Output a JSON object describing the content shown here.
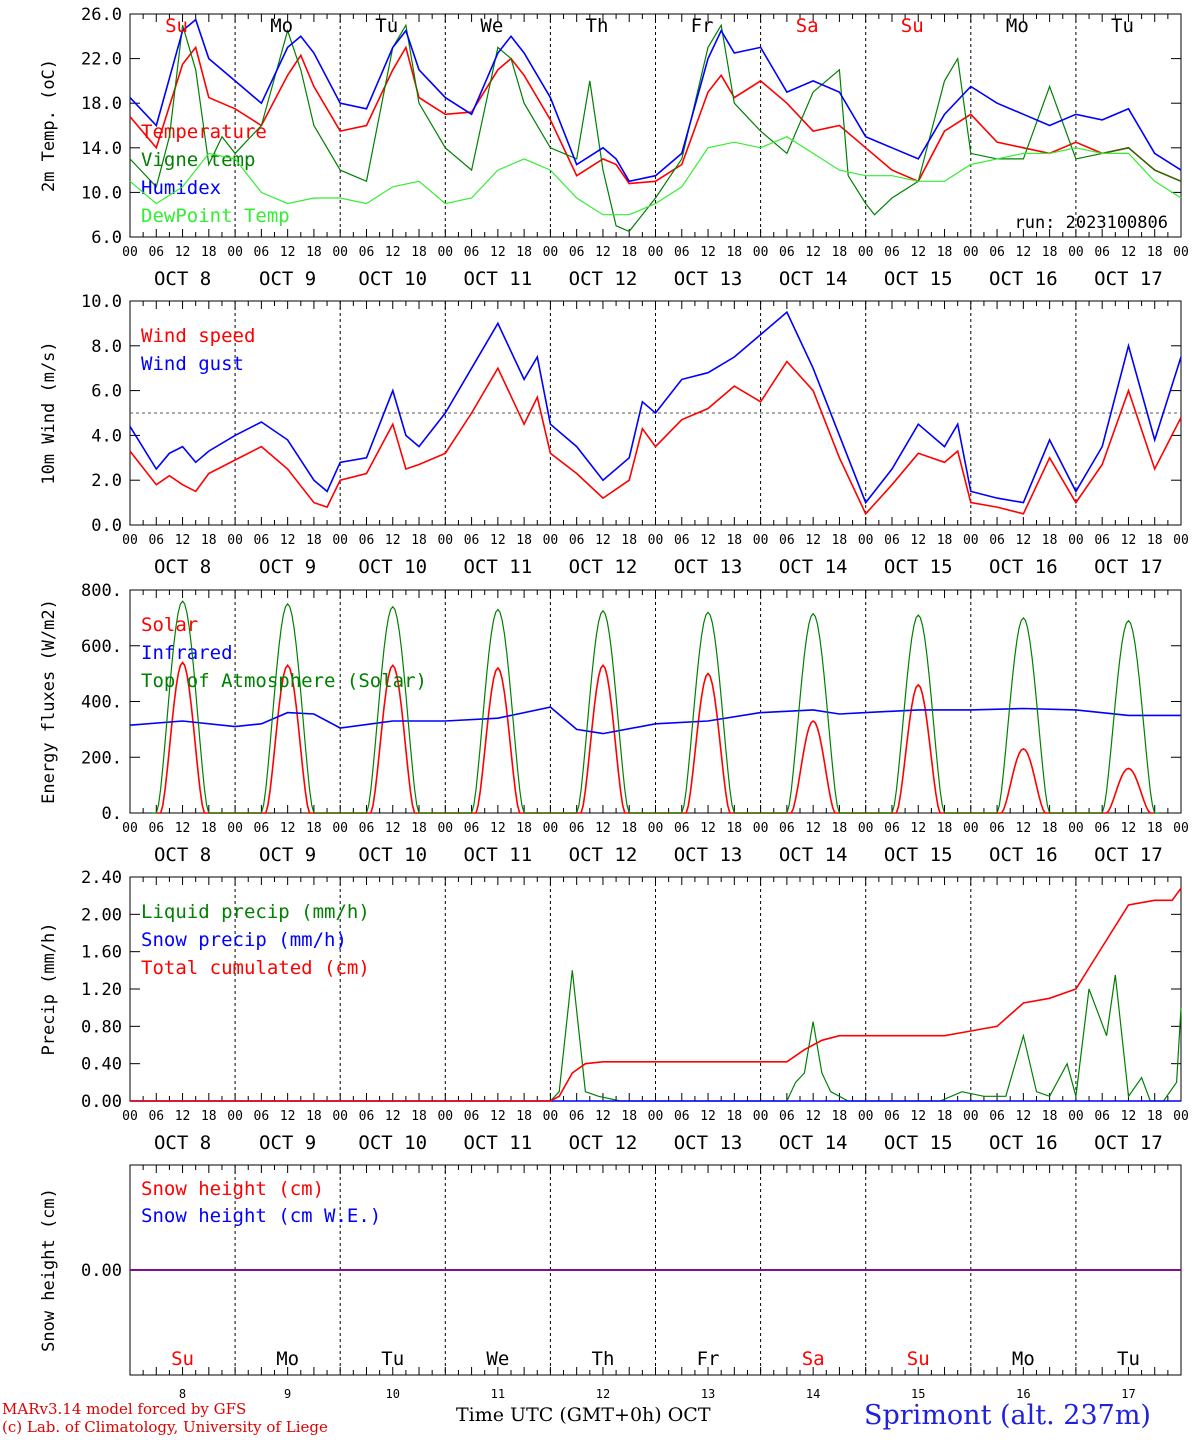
{
  "run": "run: 2023100806",
  "model_credit": "MARv3.14 model forced by GFS",
  "lab_credit": "(c) Lab. of Climatology, University of Liege",
  "time_axis_label": "Time UTC (GMT+0h) OCT",
  "station": "Sprimont (alt. 237m)",
  "colors": {
    "red": "#ff0000",
    "green": "#008000",
    "blue": "#0000ff",
    "lightgreen": "#33ee33",
    "purple": "#800080"
  },
  "days": {
    "labels": [
      "Su",
      "Mo",
      "Tu",
      "We",
      "Th",
      "Fr",
      "Sa",
      "Su",
      "Mo",
      "Tu"
    ],
    "weekend": [
      true,
      false,
      false,
      false,
      false,
      false,
      true,
      true,
      false,
      false
    ],
    "dates": [
      "OCT  8",
      "OCT  9",
      "OCT 10",
      "OCT 11",
      "OCT 12",
      "OCT 13",
      "OCT 14",
      "OCT 15",
      "OCT 16",
      "OCT 17"
    ],
    "numbers": [
      "8",
      "9",
      "10",
      "11",
      "12",
      "13",
      "14",
      "15",
      "16",
      "17"
    ],
    "hour_ticks": [
      "00",
      "06",
      "12",
      "18"
    ],
    "final_tick": "00"
  },
  "chart_data": [
    {
      "type": "line",
      "ylabel": "2m Temp. (oC)",
      "ytick_labels": [
        "6.0",
        "10.0",
        "14.0",
        "18.0",
        "22.0",
        "26.0"
      ],
      "ylim": [
        6,
        26
      ],
      "x_unit": "hours from 2023-10-08 00 UTC",
      "series": [
        {
          "name": "Temperature",
          "color": "red",
          "x": [
            0,
            6,
            12,
            15,
            18,
            24,
            30,
            36,
            39,
            42,
            48,
            54,
            60,
            63,
            66,
            72,
            78,
            84,
            87,
            90,
            96,
            102,
            108,
            111,
            114,
            120,
            126,
            132,
            135,
            138,
            144,
            150,
            156,
            162,
            168,
            174,
            180,
            186,
            192,
            198,
            204,
            210,
            216,
            222,
            228,
            234,
            240
          ],
          "y": [
            16.8,
            14,
            21.5,
            23,
            18.5,
            17.5,
            16,
            20.5,
            22.3,
            19.5,
            15.5,
            16,
            21,
            23,
            18.5,
            17,
            17.2,
            21,
            22,
            20.5,
            16.5,
            11.5,
            13,
            12.5,
            10.8,
            11,
            12.5,
            19,
            20.5,
            18.5,
            20,
            18,
            15.5,
            16,
            14,
            12,
            11,
            15.5,
            17,
            14.5,
            14,
            13.5,
            14.5,
            13.5,
            14,
            12,
            11
          ]
        },
        {
          "name": "Vigne temp",
          "color": "green",
          "x": [
            0,
            6,
            9,
            12,
            15,
            18,
            21,
            24,
            30,
            36,
            39,
            42,
            48,
            54,
            60,
            63,
            66,
            72,
            78,
            84,
            87,
            90,
            96,
            102,
            105,
            108,
            111,
            114,
            120,
            126,
            132,
            135,
            138,
            144,
            150,
            156,
            162,
            164,
            168,
            170,
            174,
            180,
            186,
            189,
            192,
            198,
            204,
            210,
            216,
            222,
            228,
            234,
            240
          ],
          "y": [
            13,
            10.5,
            15,
            25,
            21,
            12.5,
            15,
            13.5,
            16,
            24.5,
            21,
            16,
            12,
            11,
            23,
            25,
            18,
            14,
            12,
            23,
            22,
            18,
            14,
            13,
            20,
            12,
            7,
            6.5,
            9.5,
            13,
            23,
            25,
            18,
            15.5,
            13.5,
            19,
            21,
            11.5,
            9,
            8,
            9.5,
            11,
            20,
            22,
            13.5,
            13,
            13,
            19.5,
            13,
            13.5,
            14,
            12,
            11
          ]
        },
        {
          "name": "Humidex",
          "color": "blue",
          "x": [
            0,
            6,
            12,
            15,
            18,
            24,
            30,
            36,
            39,
            42,
            48,
            54,
            60,
            63,
            66,
            72,
            78,
            84,
            87,
            90,
            96,
            102,
            108,
            111,
            114,
            120,
            126,
            132,
            135,
            138,
            144,
            150,
            156,
            162,
            168,
            174,
            180,
            186,
            192,
            198,
            204,
            210,
            216,
            222,
            228,
            234,
            240
          ],
          "y": [
            18.5,
            16,
            24.5,
            25.5,
            22,
            20,
            18,
            23,
            24,
            22.5,
            18,
            17.5,
            23,
            24.5,
            21,
            18.5,
            17,
            22.5,
            24,
            22.5,
            18.5,
            12.5,
            14,
            13,
            11,
            11.5,
            13.5,
            22,
            24.5,
            22.5,
            23,
            19,
            20,
            19,
            15,
            14,
            13,
            17,
            19.5,
            18,
            17,
            16,
            17,
            16.5,
            17.5,
            13.5,
            12
          ]
        },
        {
          "name": "DewPoint Temp",
          "color": "lightgreen",
          "x": [
            0,
            6,
            12,
            18,
            24,
            30,
            36,
            42,
            48,
            54,
            60,
            66,
            72,
            78,
            84,
            90,
            96,
            102,
            108,
            114,
            120,
            126,
            132,
            138,
            144,
            150,
            156,
            162,
            168,
            174,
            180,
            186,
            192,
            198,
            204,
            210,
            216,
            222,
            228,
            234,
            240
          ],
          "y": [
            11,
            9,
            10.5,
            13.5,
            13,
            10,
            9,
            9.5,
            9.5,
            9,
            10.5,
            11,
            9,
            9.5,
            12,
            13,
            12,
            9.5,
            8,
            8,
            9,
            10.5,
            14,
            14.5,
            14,
            15,
            13.5,
            12,
            11.5,
            11.5,
            11,
            11,
            12.5,
            13,
            13.5,
            13.5,
            14,
            13.5,
            13.5,
            11,
            9.5
          ]
        }
      ]
    },
    {
      "type": "line",
      "ylabel": "10m Wind (m/s)",
      "ytick_labels": [
        "0.0",
        "2.0",
        "4.0",
        "6.0",
        "8.0",
        "10.0"
      ],
      "ylim": [
        0,
        10
      ],
      "reference_line": 5,
      "series": [
        {
          "name": "Wind speed",
          "color": "red",
          "x": [
            0,
            6,
            9,
            12,
            15,
            18,
            24,
            30,
            36,
            42,
            45,
            48,
            54,
            60,
            63,
            66,
            72,
            78,
            84,
            90,
            93,
            96,
            102,
            108,
            114,
            117,
            120,
            126,
            132,
            138,
            144,
            150,
            156,
            162,
            168,
            174,
            180,
            186,
            189,
            192,
            198,
            204,
            210,
            216,
            222,
            228,
            234,
            240
          ],
          "y": [
            3.3,
            1.8,
            2.2,
            1.8,
            1.5,
            2.3,
            2.9,
            3.5,
            2.5,
            1,
            0.8,
            2,
            2.3,
            4.5,
            2.5,
            2.7,
            3.2,
            5,
            7,
            4.5,
            5.7,
            3.2,
            2.3,
            1.2,
            2,
            4.3,
            3.5,
            4.7,
            5.2,
            6.2,
            5.5,
            7.3,
            6,
            3,
            0.5,
            1.8,
            3.2,
            2.8,
            3.3,
            1,
            0.8,
            0.5,
            3,
            1,
            2.7,
            6,
            2.5,
            4.8
          ]
        },
        {
          "name": "Wind gust",
          "color": "blue",
          "x": [
            0,
            6,
            9,
            12,
            15,
            18,
            24,
            30,
            36,
            42,
            45,
            48,
            54,
            60,
            63,
            66,
            72,
            78,
            84,
            90,
            93,
            96,
            102,
            108,
            114,
            117,
            120,
            126,
            132,
            138,
            144,
            150,
            156,
            162,
            168,
            174,
            180,
            186,
            189,
            192,
            198,
            204,
            210,
            216,
            222,
            228,
            234,
            240
          ],
          "y": [
            4.4,
            2.5,
            3.2,
            3.5,
            2.8,
            3.3,
            4,
            4.6,
            3.8,
            2,
            1.5,
            2.8,
            3,
            6,
            4,
            3.5,
            5,
            7,
            9,
            6.5,
            7.5,
            4.5,
            3.5,
            2,
            3,
            5.5,
            5,
            6.5,
            6.8,
            7.5,
            8.5,
            9.5,
            7,
            4,
            1,
            2.5,
            4.5,
            3.5,
            4.5,
            1.5,
            1.2,
            1,
            3.8,
            1.5,
            3.5,
            8,
            3.8,
            7.5
          ]
        }
      ]
    },
    {
      "type": "line",
      "ylabel": "Energy fluxes (W/m2)",
      "ytick_labels": [
        "0.",
        "200.",
        "400.",
        "600.",
        "800."
      ],
      "ylim": [
        0,
        800
      ],
      "series": [
        {
          "name": "Solar",
          "color": "red",
          "peaks": [
            540,
            530,
            530,
            520,
            530,
            500,
            330,
            460,
            230,
            160
          ]
        },
        {
          "name": "Infrared",
          "color": "blue",
          "x": [
            0,
            12,
            24,
            30,
            36,
            42,
            48,
            60,
            72,
            84,
            96,
            102,
            108,
            120,
            132,
            144,
            156,
            162,
            168,
            180,
            192,
            204,
            216,
            228,
            240
          ],
          "y": [
            315,
            330,
            310,
            320,
            360,
            355,
            305,
            330,
            330,
            340,
            380,
            300,
            285,
            320,
            330,
            360,
            370,
            355,
            360,
            370,
            370,
            375,
            370,
            350,
            350
          ]
        },
        {
          "name": "Top of Atmosphere (Solar)",
          "color": "green",
          "peaks": [
            760,
            750,
            740,
            730,
            725,
            720,
            715,
            710,
            700,
            690
          ]
        }
      ]
    },
    {
      "type": "line",
      "ylabel": "Precip (mm/h)",
      "ytick_labels": [
        "0.00",
        "0.40",
        "0.80",
        "1.20",
        "1.60",
        "2.00",
        "2.40"
      ],
      "ylim": [
        0,
        2.4
      ],
      "series": [
        {
          "name": "Liquid precip (mm/h)",
          "color": "green",
          "x": [
            0,
            96,
            98,
            101,
            104,
            107,
            112,
            150,
            152,
            154,
            156,
            158,
            160,
            164,
            185,
            190,
            195,
            200,
            204,
            207,
            210,
            214,
            216,
            219,
            223,
            225,
            228,
            231,
            233,
            236,
            239,
            240
          ],
          "y": [
            0,
            0,
            0.1,
            1.4,
            0.1,
            0.05,
            0,
            0,
            0.2,
            0.3,
            0.85,
            0.3,
            0.1,
            0,
            0,
            0.1,
            0.05,
            0.05,
            0.7,
            0.1,
            0.05,
            0.4,
            0.05,
            1.2,
            0.7,
            1.35,
            0.05,
            0.25,
            0,
            0,
            0.2,
            1
          ]
        },
        {
          "name": "Snow precip (mm/h)",
          "color": "blue",
          "x": [
            0,
            240
          ],
          "y": [
            0,
            0
          ]
        },
        {
          "name": "Total cumulated (cm)",
          "color": "red",
          "x": [
            0,
            96,
            98,
            101,
            104,
            108,
            150,
            154,
            158,
            162,
            186,
            192,
            198,
            204,
            210,
            216,
            220,
            228,
            234,
            238,
            240
          ],
          "y": [
            0,
            0,
            0.05,
            0.3,
            0.4,
            0.42,
            0.42,
            0.55,
            0.65,
            0.7,
            0.7,
            0.75,
            0.8,
            1.05,
            1.1,
            1.2,
            1.5,
            2.1,
            2.15,
            2.15,
            2.28
          ]
        }
      ]
    },
    {
      "type": "line",
      "ylabel": "Snow height (cm)",
      "ytick_labels": [
        "0.00"
      ],
      "ylim": [
        -1,
        1
      ],
      "series": [
        {
          "name": "Snow height (cm)",
          "color": "red",
          "x": [
            0,
            240
          ],
          "y": [
            0,
            0
          ]
        },
        {
          "name": "Snow height (cm W.E.)",
          "color": "blue",
          "x": [
            0,
            240
          ],
          "y": [
            0,
            0
          ]
        }
      ]
    }
  ]
}
